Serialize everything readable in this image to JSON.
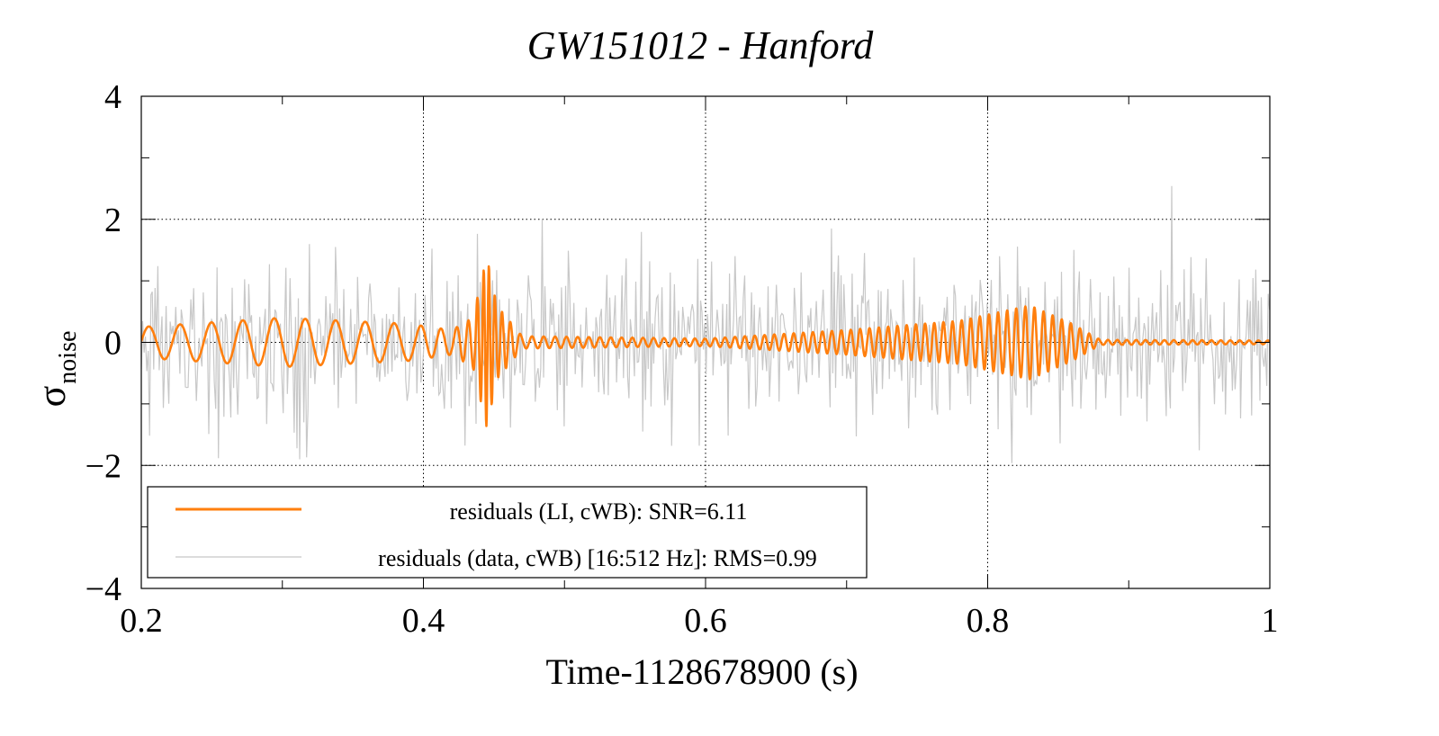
{
  "chart_data": {
    "type": "line",
    "title": "GW151012 - Hanford",
    "xlabel": "Time-1128678900 (s)",
    "ylabel_main": "σ",
    "ylabel_sub": "noise",
    "xlim": [
      0.2,
      1.0
    ],
    "ylim": [
      -4,
      4
    ],
    "xticks": [
      0.2,
      0.4,
      0.6,
      0.8,
      1.0
    ],
    "xtick_labels": [
      "0.2",
      "0.4",
      "0.6",
      "0.8",
      "1"
    ],
    "yticks": [
      -4,
      -2,
      0,
      2,
      4
    ],
    "ytick_labels": [
      "−4",
      "−2",
      "0",
      "2",
      "4"
    ],
    "grid": true,
    "legend_placement": "bottom-left",
    "series": [
      {
        "name": "residuals (data, cWB) [16:512 Hz]: RMS=0.99",
        "color": "#c8c8c8",
        "kind": "noise",
        "rms": 0.99,
        "sample_rate_hz": 1024
      },
      {
        "name": "residuals (LI, cWB): SNR=6.11",
        "color": "#ff7f0e",
        "kind": "oscillation",
        "envelope": [
          {
            "t": 0.2,
            "amp": 0.25,
            "freq": 45
          },
          {
            "t": 0.3,
            "amp": 0.4,
            "freq": 45
          },
          {
            "t": 0.39,
            "amp": 0.3,
            "freq": 50
          },
          {
            "t": 0.42,
            "amp": 0.2,
            "freq": 90
          },
          {
            "t": 0.435,
            "amp": 0.4,
            "freq": 150
          },
          {
            "t": 0.445,
            "amp": 1.4,
            "freq": 280
          },
          {
            "t": 0.452,
            "amp": 0.6,
            "freq": 200
          },
          {
            "t": 0.47,
            "amp": 0.1,
            "freq": 120
          },
          {
            "t": 0.6,
            "amp": 0.06,
            "freq": 140
          },
          {
            "t": 0.7,
            "amp": 0.2,
            "freq": 150
          },
          {
            "t": 0.78,
            "amp": 0.35,
            "freq": 155
          },
          {
            "t": 0.83,
            "amp": 0.6,
            "freq": 155
          },
          {
            "t": 0.86,
            "amp": 0.3,
            "freq": 155
          },
          {
            "t": 0.88,
            "amp": 0.04,
            "freq": 150
          },
          {
            "t": 1.0,
            "amp": 0.03,
            "freq": 150
          }
        ]
      }
    ]
  }
}
